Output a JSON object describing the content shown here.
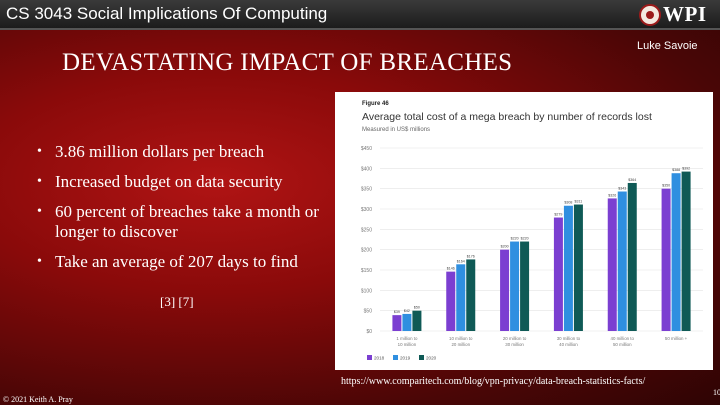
{
  "header": {
    "course_title": "CS 3043 Social Implications Of Computing",
    "logo_text": "WPI"
  },
  "author": "Luke Savoie",
  "title": "DEVASTATING IMPACT OF BREACHES",
  "bullets": [
    "3.86 million dollars per breach",
    "Increased budget on data security",
    "60 percent of breaches take a month or longer to discover",
    "Take an average of 207 days to find"
  ],
  "citation": "[3] [7]",
  "source_url": "https://www.comparitech.com/blog/vpn-privacy/data-breach-statistics-facts/",
  "footer": {
    "copyright": "© 2021 Keith A. Pray",
    "page_number": "10"
  },
  "chart_data": {
    "type": "bar",
    "figure_label": "Figure 46",
    "title": "Average total cost of a mega breach by number of records lost",
    "subtitle": "Measured in US$ millions",
    "categories": [
      [
        "1 million to",
        "10 million"
      ],
      [
        "10 million to",
        "20 million"
      ],
      [
        "20 million to",
        "30 million"
      ],
      [
        "30 million to",
        "40 million"
      ],
      [
        "40 million to",
        "50 million"
      ],
      [
        "50 million +"
      ]
    ],
    "series": [
      {
        "name": "2018",
        "color": "#7b3fd1",
        "values": [
          39,
          146,
          200,
          279,
          326,
          350
        ]
      },
      {
        "name": "2019",
        "color": "#2f8fe0",
        "values": [
          42,
          164,
          220,
          308,
          343,
          388
        ]
      },
      {
        "name": "2020",
        "color": "#0f5a56",
        "values": [
          50,
          176,
          220,
          311,
          364,
          392
        ]
      }
    ],
    "ylim": [
      0,
      450
    ],
    "yticks": [
      0,
      50,
      100,
      150,
      200,
      250,
      300,
      350,
      400,
      450
    ],
    "ytick_labels": [
      "$0",
      "$50",
      "$100",
      "$150",
      "$200",
      "$250",
      "$300",
      "$350",
      "$400",
      "$450"
    ]
  }
}
